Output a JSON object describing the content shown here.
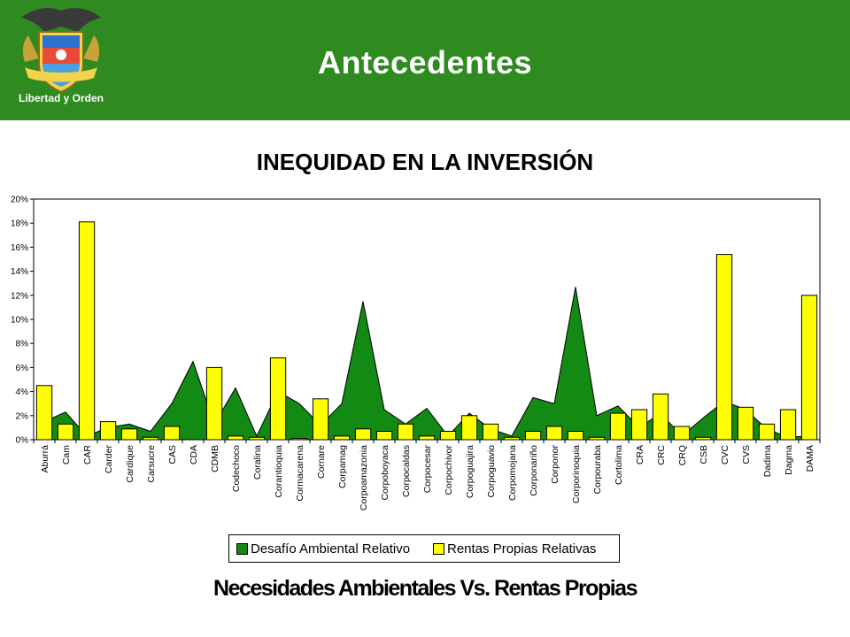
{
  "header": {
    "title": "Antecedentes",
    "logo_caption": "Libertad y Orden"
  },
  "footer_caption": "Necesidades Ambientales Vs. Rentas Propias",
  "chart_data": {
    "type": "bar",
    "title": "INEQUIDAD EN LA INVERSIÓN",
    "ylim": [
      0,
      20
    ],
    "y_ticks": [
      "0%",
      "2%",
      "4%",
      "6%",
      "8%",
      "10%",
      "12%",
      "14%",
      "16%",
      "18%",
      "20%"
    ],
    "categories": [
      "Aburrá",
      "Cam",
      "CAR",
      "Carder",
      "Cardique",
      "Carsucre",
      "CAS",
      "CDA",
      "CDMB",
      "Codechoco",
      "Coralina",
      "Corantioquia",
      "Cormacarena",
      "Cornare",
      "Corpamag",
      "Corpoamazonia",
      "Corpoboyaca",
      "Corpocaldas",
      "Corpocesar",
      "Corpochivor",
      "Corpoguajira",
      "Corpoguavio",
      "Corpomojana",
      "Corponariño",
      "Corponor",
      "Corporinoquia",
      "Corpouraba",
      "Cortolima",
      "CRA",
      "CRC",
      "CRQ",
      "CSB",
      "CVC",
      "CVS",
      "Dadima",
      "Dagma",
      "DAMA"
    ],
    "series": [
      {
        "name": "Desafío Ambiental Relativo",
        "kind": "area",
        "color": "#138a13",
        "values": [
          1.5,
          2.3,
          0.3,
          1.0,
          1.3,
          0.7,
          3.0,
          6.5,
          1.3,
          4.3,
          0.3,
          4.0,
          3.0,
          1.2,
          3.0,
          11.5,
          2.5,
          1.3,
          2.6,
          0.3,
          2.2,
          0.9,
          0.3,
          3.5,
          3.0,
          12.7,
          2.0,
          2.8,
          1.0,
          2.2,
          0.3,
          1.8,
          3.2,
          2.5,
          0.9,
          0.2,
          0.3
        ]
      },
      {
        "name": "Rentas Propias Relativas",
        "kind": "bar",
        "color": "#ffff00",
        "values": [
          4.5,
          1.3,
          18.1,
          1.5,
          0.9,
          0.2,
          1.1,
          0,
          6.0,
          0.3,
          0.2,
          6.8,
          0.1,
          3.4,
          0.3,
          0.9,
          0.7,
          1.3,
          0.3,
          0.7,
          2.0,
          1.3,
          0.2,
          0.7,
          1.1,
          0.7,
          0.2,
          2.2,
          2.5,
          3.8,
          1.1,
          0.2,
          15.4,
          2.7,
          1.3,
          2.5,
          12.0
        ]
      }
    ],
    "legend_position": "bottom",
    "grid": false
  }
}
